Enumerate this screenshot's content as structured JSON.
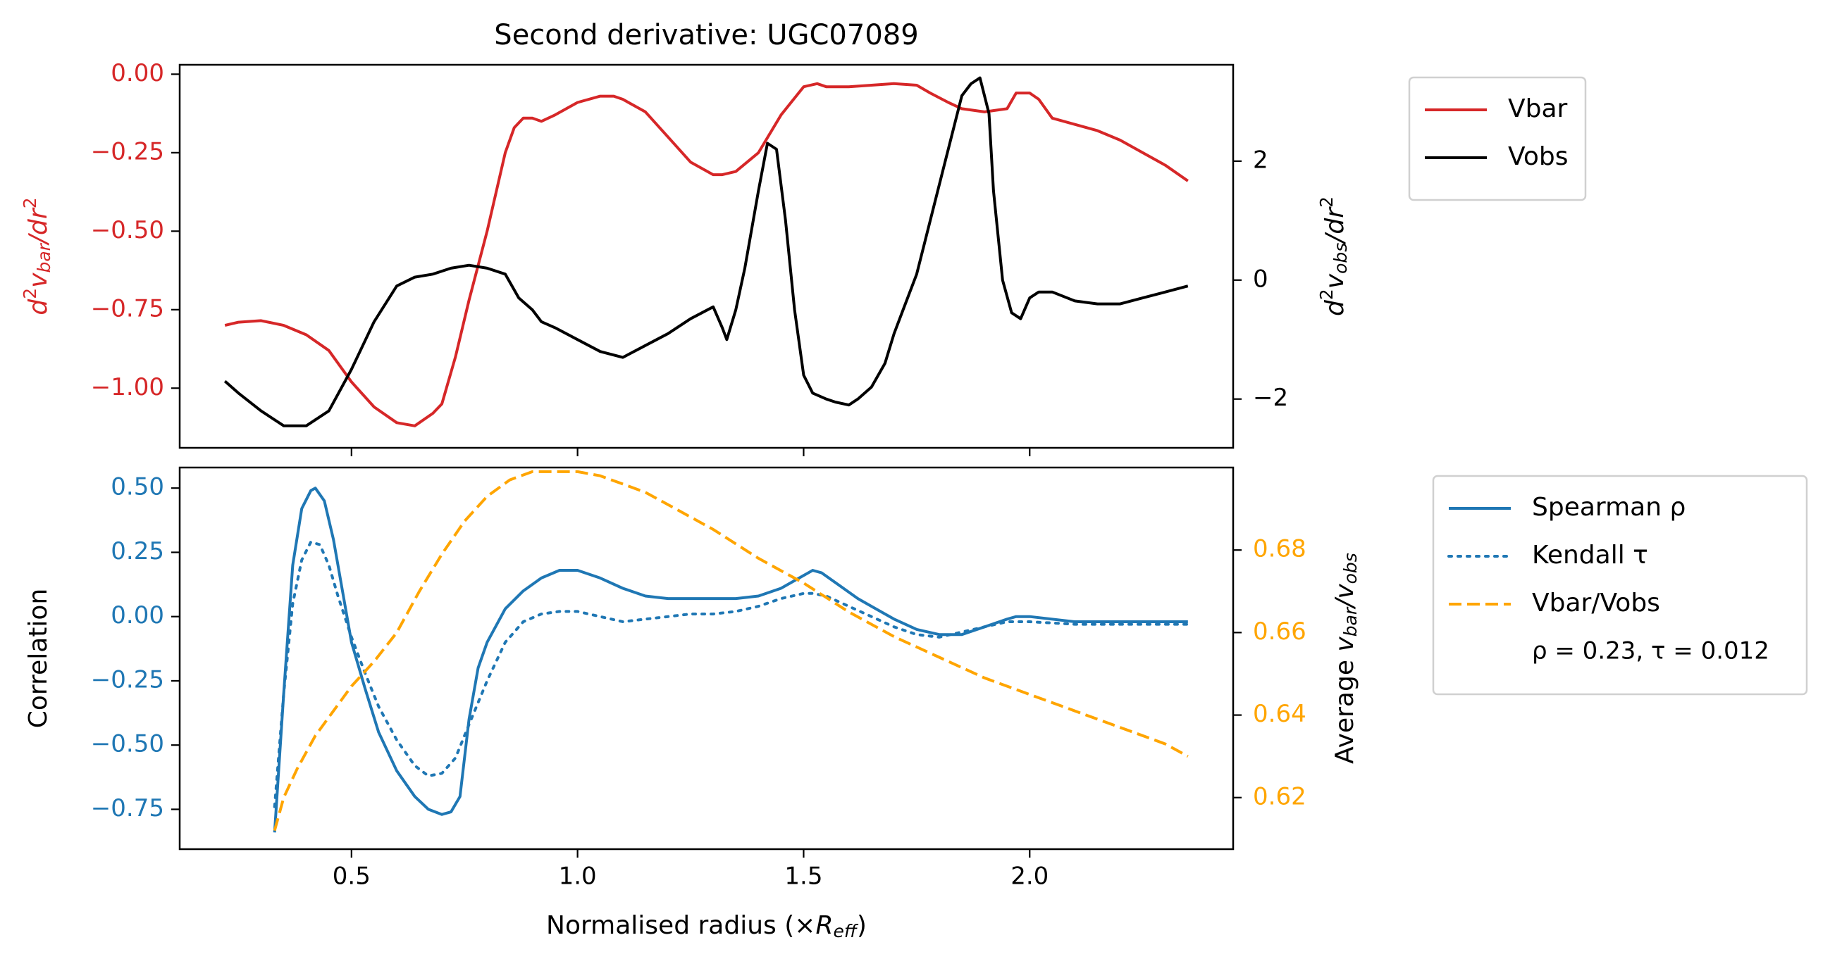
{
  "chart_data": [
    {
      "type": "line",
      "title": "Second derivative: UGC07089",
      "xlim": [
        0.12,
        2.45
      ],
      "ylim": [
        -1.19,
        0.03
      ],
      "ylim_right": [
        -2.82,
        3.62
      ],
      "xticks": [
        0.5,
        1.0,
        1.5,
        2.0
      ],
      "yticks": [
        0.0,
        -0.25,
        -0.5,
        -0.75,
        -1.0
      ],
      "ytick_labels": [
        "0.00",
        "−0.25",
        "−0.50",
        "−0.75",
        "−1.00"
      ],
      "yticks_right": [
        2,
        0,
        -2
      ],
      "ytick_labels_right": [
        "2",
        "0",
        "−2"
      ],
      "ylabel": "d²v_bar/dr²",
      "ylabel_right": "d²v_obs/dr²",
      "legend_position": "outside right, top",
      "series": [
        {
          "name": "Vbar",
          "axis": "left",
          "color": "#d62728",
          "style": "solid",
          "x": [
            0.22,
            0.25,
            0.3,
            0.35,
            0.4,
            0.45,
            0.5,
            0.55,
            0.6,
            0.64,
            0.68,
            0.7,
            0.73,
            0.76,
            0.8,
            0.84,
            0.86,
            0.88,
            0.9,
            0.92,
            0.95,
            1.0,
            1.05,
            1.08,
            1.1,
            1.15,
            1.2,
            1.25,
            1.3,
            1.32,
            1.35,
            1.4,
            1.45,
            1.5,
            1.53,
            1.55,
            1.6,
            1.65,
            1.7,
            1.75,
            1.78,
            1.82,
            1.85,
            1.9,
            1.95,
            1.97,
            2.0,
            2.02,
            2.05,
            2.1,
            2.15,
            2.2,
            2.25,
            2.3,
            2.35
          ],
          "y": [
            -0.8,
            -0.79,
            -0.785,
            -0.8,
            -0.83,
            -0.88,
            -0.98,
            -1.06,
            -1.11,
            -1.12,
            -1.08,
            -1.05,
            -0.9,
            -0.72,
            -0.5,
            -0.25,
            -0.17,
            -0.14,
            -0.14,
            -0.15,
            -0.13,
            -0.09,
            -0.07,
            -0.07,
            -0.08,
            -0.12,
            -0.2,
            -0.28,
            -0.32,
            -0.32,
            -0.31,
            -0.25,
            -0.13,
            -0.04,
            -0.03,
            -0.04,
            -0.04,
            -0.035,
            -0.03,
            -0.035,
            -0.06,
            -0.09,
            -0.11,
            -0.12,
            -0.11,
            -0.06,
            -0.06,
            -0.08,
            -0.14,
            -0.16,
            -0.18,
            -0.21,
            -0.25,
            -0.29,
            -0.34
          ]
        },
        {
          "name": "Vobs",
          "axis": "right",
          "color": "#000000",
          "style": "solid",
          "x": [
            0.22,
            0.25,
            0.3,
            0.35,
            0.4,
            0.45,
            0.5,
            0.55,
            0.6,
            0.64,
            0.68,
            0.72,
            0.76,
            0.8,
            0.84,
            0.87,
            0.9,
            0.92,
            0.95,
            1.0,
            1.05,
            1.1,
            1.15,
            1.2,
            1.25,
            1.3,
            1.32,
            1.33,
            1.35,
            1.37,
            1.4,
            1.42,
            1.44,
            1.46,
            1.48,
            1.5,
            1.52,
            1.55,
            1.57,
            1.6,
            1.62,
            1.65,
            1.68,
            1.7,
            1.72,
            1.75,
            1.8,
            1.85,
            1.87,
            1.89,
            1.91,
            1.92,
            1.94,
            1.96,
            1.98,
            2.0,
            2.02,
            2.03,
            2.05,
            2.1,
            2.15,
            2.2,
            2.25,
            2.3,
            2.35
          ],
          "y": [
            -1.7,
            -1.9,
            -2.2,
            -2.45,
            -2.45,
            -2.2,
            -1.5,
            -0.7,
            -0.1,
            0.05,
            0.1,
            0.2,
            0.25,
            0.2,
            0.1,
            -0.3,
            -0.5,
            -0.7,
            -0.8,
            -1.0,
            -1.2,
            -1.3,
            -1.1,
            -0.9,
            -0.65,
            -0.45,
            -0.8,
            -1.0,
            -0.5,
            0.2,
            1.5,
            2.3,
            2.2,
            1.0,
            -0.5,
            -1.6,
            -1.9,
            -2.0,
            -2.05,
            -2.1,
            -2.0,
            -1.8,
            -1.4,
            -0.9,
            -0.5,
            0.1,
            1.6,
            3.1,
            3.3,
            3.4,
            2.8,
            1.5,
            0.0,
            -0.55,
            -0.65,
            -0.3,
            -0.2,
            -0.2,
            -0.2,
            -0.35,
            -0.4,
            -0.4,
            -0.3,
            -0.2,
            -0.1
          ]
        }
      ]
    },
    {
      "type": "line",
      "xlabel": "Normalised radius (×R_eff)",
      "xlim": [
        0.12,
        2.45
      ],
      "ylim": [
        -0.905,
        0.58
      ],
      "ylim_right": [
        0.6075,
        0.7
      ],
      "xticks": [
        0.5,
        1.0,
        1.5,
        2.0
      ],
      "xtick_labels": [
        "0.5",
        "1.0",
        "1.5",
        "2.0"
      ],
      "yticks": [
        0.5,
        0.25,
        0.0,
        -0.25,
        -0.5,
        -0.75
      ],
      "ytick_labels": [
        "0.50",
        "0.25",
        "0.00",
        "−0.25",
        "−0.50",
        "−0.75"
      ],
      "yticks_right": [
        0.68,
        0.66,
        0.64,
        0.62
      ],
      "ytick_labels_right": [
        "0.68",
        "0.66",
        "0.64",
        "0.62"
      ],
      "ylabel": "Correlation",
      "ylabel_right": "Average v_bar/v_obs",
      "legend_position": "outside right, top",
      "legend_note": "ρ = 0.23, τ = 0.012",
      "series": [
        {
          "name": "Spearman ρ",
          "axis": "left",
          "color": "#1f77b4",
          "style": "solid",
          "x": [
            0.33,
            0.35,
            0.37,
            0.39,
            0.41,
            0.42,
            0.44,
            0.46,
            0.48,
            0.5,
            0.53,
            0.56,
            0.6,
            0.64,
            0.67,
            0.7,
            0.72,
            0.74,
            0.76,
            0.78,
            0.8,
            0.84,
            0.88,
            0.92,
            0.96,
            1.0,
            1.05,
            1.1,
            1.15,
            1.2,
            1.25,
            1.3,
            1.35,
            1.4,
            1.45,
            1.5,
            1.52,
            1.54,
            1.58,
            1.62,
            1.66,
            1.7,
            1.75,
            1.8,
            1.85,
            1.9,
            1.95,
            1.97,
            2.0,
            2.1,
            2.2,
            2.3,
            2.35
          ],
          "y": [
            -0.84,
            -0.3,
            0.2,
            0.42,
            0.49,
            0.5,
            0.45,
            0.3,
            0.1,
            -0.1,
            -0.28,
            -0.45,
            -0.6,
            -0.7,
            -0.75,
            -0.77,
            -0.76,
            -0.7,
            -0.4,
            -0.2,
            -0.1,
            0.03,
            0.1,
            0.15,
            0.18,
            0.18,
            0.15,
            0.11,
            0.08,
            0.07,
            0.07,
            0.07,
            0.07,
            0.08,
            0.11,
            0.16,
            0.18,
            0.17,
            0.12,
            0.07,
            0.03,
            -0.01,
            -0.05,
            -0.07,
            -0.07,
            -0.04,
            -0.01,
            0.0,
            0.0,
            -0.02,
            -0.02,
            -0.02,
            -0.02
          ]
        },
        {
          "name": "Kendall τ",
          "axis": "left",
          "color": "#1f77b4",
          "style": "dotted",
          "x": [
            0.33,
            0.35,
            0.37,
            0.39,
            0.41,
            0.43,
            0.45,
            0.47,
            0.5,
            0.53,
            0.56,
            0.6,
            0.64,
            0.67,
            0.7,
            0.73,
            0.76,
            0.8,
            0.84,
            0.88,
            0.92,
            0.96,
            1.0,
            1.05,
            1.1,
            1.15,
            1.2,
            1.25,
            1.3,
            1.35,
            1.4,
            1.45,
            1.5,
            1.52,
            1.55,
            1.6,
            1.65,
            1.7,
            1.75,
            1.8,
            1.85,
            1.9,
            1.95,
            2.0,
            2.1,
            2.2,
            2.3,
            2.35
          ],
          "y": [
            -0.74,
            -0.3,
            0.05,
            0.22,
            0.29,
            0.28,
            0.2,
            0.08,
            -0.08,
            -0.22,
            -0.35,
            -0.48,
            -0.58,
            -0.62,
            -0.61,
            -0.55,
            -0.42,
            -0.25,
            -0.1,
            -0.02,
            0.01,
            0.02,
            0.02,
            0.0,
            -0.02,
            -0.01,
            0.0,
            0.01,
            0.01,
            0.02,
            0.04,
            0.07,
            0.09,
            0.09,
            0.08,
            0.04,
            0.0,
            -0.04,
            -0.07,
            -0.08,
            -0.06,
            -0.04,
            -0.02,
            -0.02,
            -0.03,
            -0.03,
            -0.03,
            -0.03
          ]
        },
        {
          "name": "Vbar/Vobs",
          "axis": "right",
          "color": "#ffa500",
          "style": "dashed",
          "x": [
            0.33,
            0.35,
            0.38,
            0.42,
            0.46,
            0.5,
            0.55,
            0.6,
            0.65,
            0.7,
            0.75,
            0.8,
            0.85,
            0.9,
            0.95,
            1.0,
            1.05,
            1.1,
            1.15,
            1.2,
            1.3,
            1.4,
            1.5,
            1.6,
            1.7,
            1.8,
            1.9,
            2.0,
            2.1,
            2.2,
            2.3,
            2.35
          ],
          "y": [
            0.612,
            0.62,
            0.627,
            0.635,
            0.641,
            0.647,
            0.653,
            0.66,
            0.67,
            0.679,
            0.687,
            0.693,
            0.697,
            0.699,
            0.699,
            0.699,
            0.698,
            0.696,
            0.694,
            0.691,
            0.685,
            0.678,
            0.672,
            0.665,
            0.659,
            0.654,
            0.649,
            0.645,
            0.641,
            0.637,
            0.633,
            0.63
          ]
        }
      ]
    }
  ],
  "legends": {
    "top": [
      {
        "label": "Vbar",
        "color": "#d62728",
        "style": "solid"
      },
      {
        "label": "Vobs",
        "color": "#000000",
        "style": "solid"
      }
    ],
    "bottom": [
      {
        "label": "Spearman ρ",
        "color": "#1f77b4",
        "style": "solid"
      },
      {
        "label": "Kendall τ",
        "color": "#1f77b4",
        "style": "dotted"
      },
      {
        "label": "Vbar/Vobs",
        "color": "#ffa500",
        "style": "dashed"
      }
    ],
    "bottom_note": "ρ = 0.23, τ = 0.012"
  },
  "colors": {
    "vbar": "#d62728",
    "vobs": "#000000",
    "correlation": "#1f77b4",
    "ratio": "#ffa500"
  }
}
